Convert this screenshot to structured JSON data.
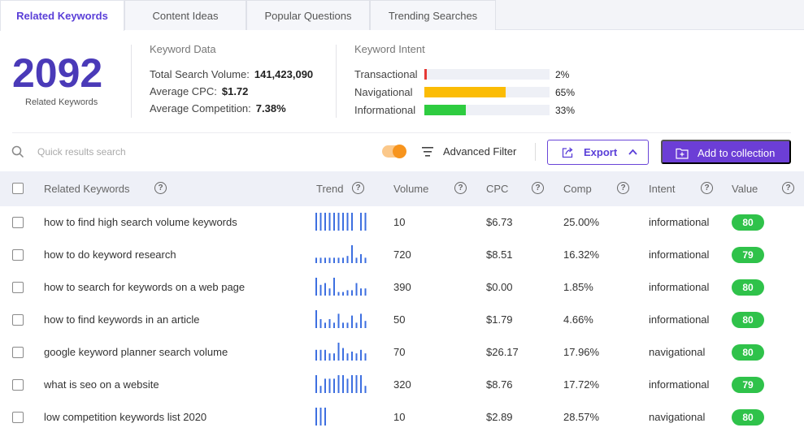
{
  "tabs": [
    {
      "label": "Related Keywords",
      "active": true
    },
    {
      "label": "Content Ideas",
      "active": false
    },
    {
      "label": "Popular Questions",
      "active": false
    },
    {
      "label": "Trending Searches",
      "active": false
    }
  ],
  "summary": {
    "count": "2092",
    "count_label": "Related Keywords",
    "keyword_data": {
      "title": "Keyword Data",
      "total_search_volume_label": "Total Search Volume:",
      "total_search_volume": "141,423,090",
      "average_cpc_label": "Average CPC:",
      "average_cpc": "$1.72",
      "average_competition_label": "Average Competition:",
      "average_competition": "7.38%"
    },
    "keyword_intent": {
      "title": "Keyword Intent",
      "items": [
        {
          "label": "Transactional",
          "percent_text": "2%",
          "percent": 2,
          "color": "#e53935"
        },
        {
          "label": "Navigational",
          "percent_text": "65%",
          "percent": 65,
          "color": "#fbbc05"
        },
        {
          "label": "Informational",
          "percent_text": "33%",
          "percent": 33,
          "color": "#2ecc40"
        }
      ]
    }
  },
  "toolbar": {
    "search_placeholder": "Quick results search",
    "toggle_on": true,
    "advanced_filter_label": "Advanced Filter",
    "export_label": "Export",
    "add_to_collection_label": "Add to collection"
  },
  "table": {
    "headers": {
      "keyword": "Related Keywords",
      "trend": "Trend",
      "volume": "Volume",
      "cpc": "CPC",
      "comp": "Comp",
      "intent": "Intent",
      "value": "Value"
    },
    "rows": [
      {
        "keyword": "how to find high search volume keywords",
        "trend": [
          10,
          10,
          10,
          10,
          10,
          10,
          10,
          10,
          10,
          0,
          10,
          10
        ],
        "volume": "10",
        "cpc": "$6.73",
        "comp": "25.00%",
        "intent": "informational",
        "value": "80"
      },
      {
        "keyword": "how to do keyword research",
        "trend": [
          3,
          3,
          3,
          3,
          3,
          3,
          3,
          4,
          10,
          3,
          5,
          3
        ],
        "volume": "720",
        "cpc": "$8.51",
        "comp": "16.32%",
        "intent": "informational",
        "value": "79"
      },
      {
        "keyword": "how to search for keywords on a web page",
        "trend": [
          10,
          6,
          7,
          4,
          10,
          2,
          2,
          3,
          3,
          7,
          4,
          4
        ],
        "volume": "390",
        "cpc": "$0.00",
        "comp": "1.85%",
        "intent": "informational",
        "value": "80"
      },
      {
        "keyword": "how to find keywords in an article",
        "trend": [
          10,
          5,
          3,
          5,
          3,
          8,
          3,
          3,
          7,
          3,
          8,
          4
        ],
        "volume": "50",
        "cpc": "$1.79",
        "comp": "4.66%",
        "intent": "informational",
        "value": "80"
      },
      {
        "keyword": "google keyword planner search volume",
        "trend": [
          6,
          6,
          6,
          4,
          4,
          10,
          7,
          4,
          5,
          4,
          6,
          4
        ],
        "volume": "70",
        "cpc": "$26.17",
        "comp": "17.96%",
        "intent": "navigational",
        "value": "80"
      },
      {
        "keyword": "what is seo on a website",
        "trend": [
          10,
          4,
          8,
          8,
          8,
          10,
          10,
          8,
          10,
          10,
          10,
          4
        ],
        "volume": "320",
        "cpc": "$8.76",
        "comp": "17.72%",
        "intent": "informational",
        "value": "79"
      },
      {
        "keyword": "low competition keywords list 2020",
        "trend": [
          10,
          10,
          10
        ],
        "volume": "10",
        "cpc": "$2.89",
        "comp": "28.57%",
        "intent": "navigational",
        "value": "80"
      }
    ]
  },
  "colors": {
    "accent": "#6c3ed6",
    "count": "#4a3ab8",
    "value_badge": "#2fc24a",
    "trend_bar": "#3d6fe0",
    "toggle": "#f7941d"
  }
}
